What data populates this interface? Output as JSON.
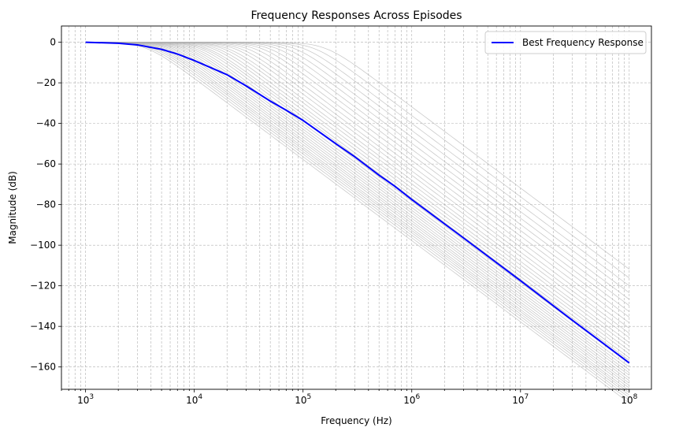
{
  "chart_data": {
    "type": "line",
    "title": "Frequency Responses Across Episodes",
    "xlabel": "Frequency (Hz)",
    "ylabel": "Magnitude (dB)",
    "x_scale": "log",
    "xlim": [
      600,
      160000000
    ],
    "ylim": [
      -171,
      8
    ],
    "x_ticks": [
      {
        "value": 1000,
        "base": "10",
        "exp": "3"
      },
      {
        "value": 10000,
        "base": "10",
        "exp": "4"
      },
      {
        "value": 100000,
        "base": "10",
        "exp": "5"
      },
      {
        "value": 1000000,
        "base": "10",
        "exp": "6"
      },
      {
        "value": 10000000,
        "base": "10",
        "exp": "7"
      },
      {
        "value": 100000000,
        "base": "10",
        "exp": "8"
      }
    ],
    "y_ticks": [
      {
        "value": 0,
        "label": "0"
      },
      {
        "value": -20,
        "label": "−20"
      },
      {
        "value": -40,
        "label": "−40"
      },
      {
        "value": -60,
        "label": "−60"
      },
      {
        "value": -80,
        "label": "−80"
      },
      {
        "value": -100,
        "label": "−100"
      },
      {
        "value": -120,
        "label": "−120"
      },
      {
        "value": -140,
        "label": "−140"
      },
      {
        "value": -160,
        "label": "−160"
      }
    ],
    "grid": true,
    "legend_position": "top-right",
    "best_series": {
      "name": "Best Frequency Response",
      "color": "#0000ff",
      "points": [
        [
          1000,
          0
        ],
        [
          2000,
          -0.5
        ],
        [
          3000,
          -1.3
        ],
        [
          5000,
          -3.5
        ],
        [
          7000,
          -5.8
        ],
        [
          10000,
          -9
        ],
        [
          20000,
          -16
        ],
        [
          30000,
          -21.5
        ],
        [
          50000,
          -29
        ],
        [
          70000,
          -33.5
        ],
        [
          100000,
          -38.5
        ],
        [
          200000,
          -50
        ],
        [
          300000,
          -56.5
        ],
        [
          500000,
          -65.5
        ],
        [
          700000,
          -71
        ],
        [
          1000000,
          -77.5
        ],
        [
          3000000,
          -96.5
        ],
        [
          10000000,
          -117.5
        ],
        [
          30000000,
          -137
        ],
        [
          100000000,
          -158
        ]
      ]
    },
    "episode_series": {
      "color": "#b0b0b0",
      "corner_frequencies": [
        3600,
        3900,
        4200,
        4500,
        4800,
        5100,
        5500,
        5900,
        6300,
        6800,
        7300,
        7900,
        8500,
        9200,
        10000,
        11000,
        12000,
        13000,
        14500,
        16000,
        18000,
        20000,
        23000,
        26000,
        30000,
        35000,
        41000,
        48000,
        57000,
        68000,
        82000,
        100000,
        125000,
        160000
      ]
    }
  }
}
